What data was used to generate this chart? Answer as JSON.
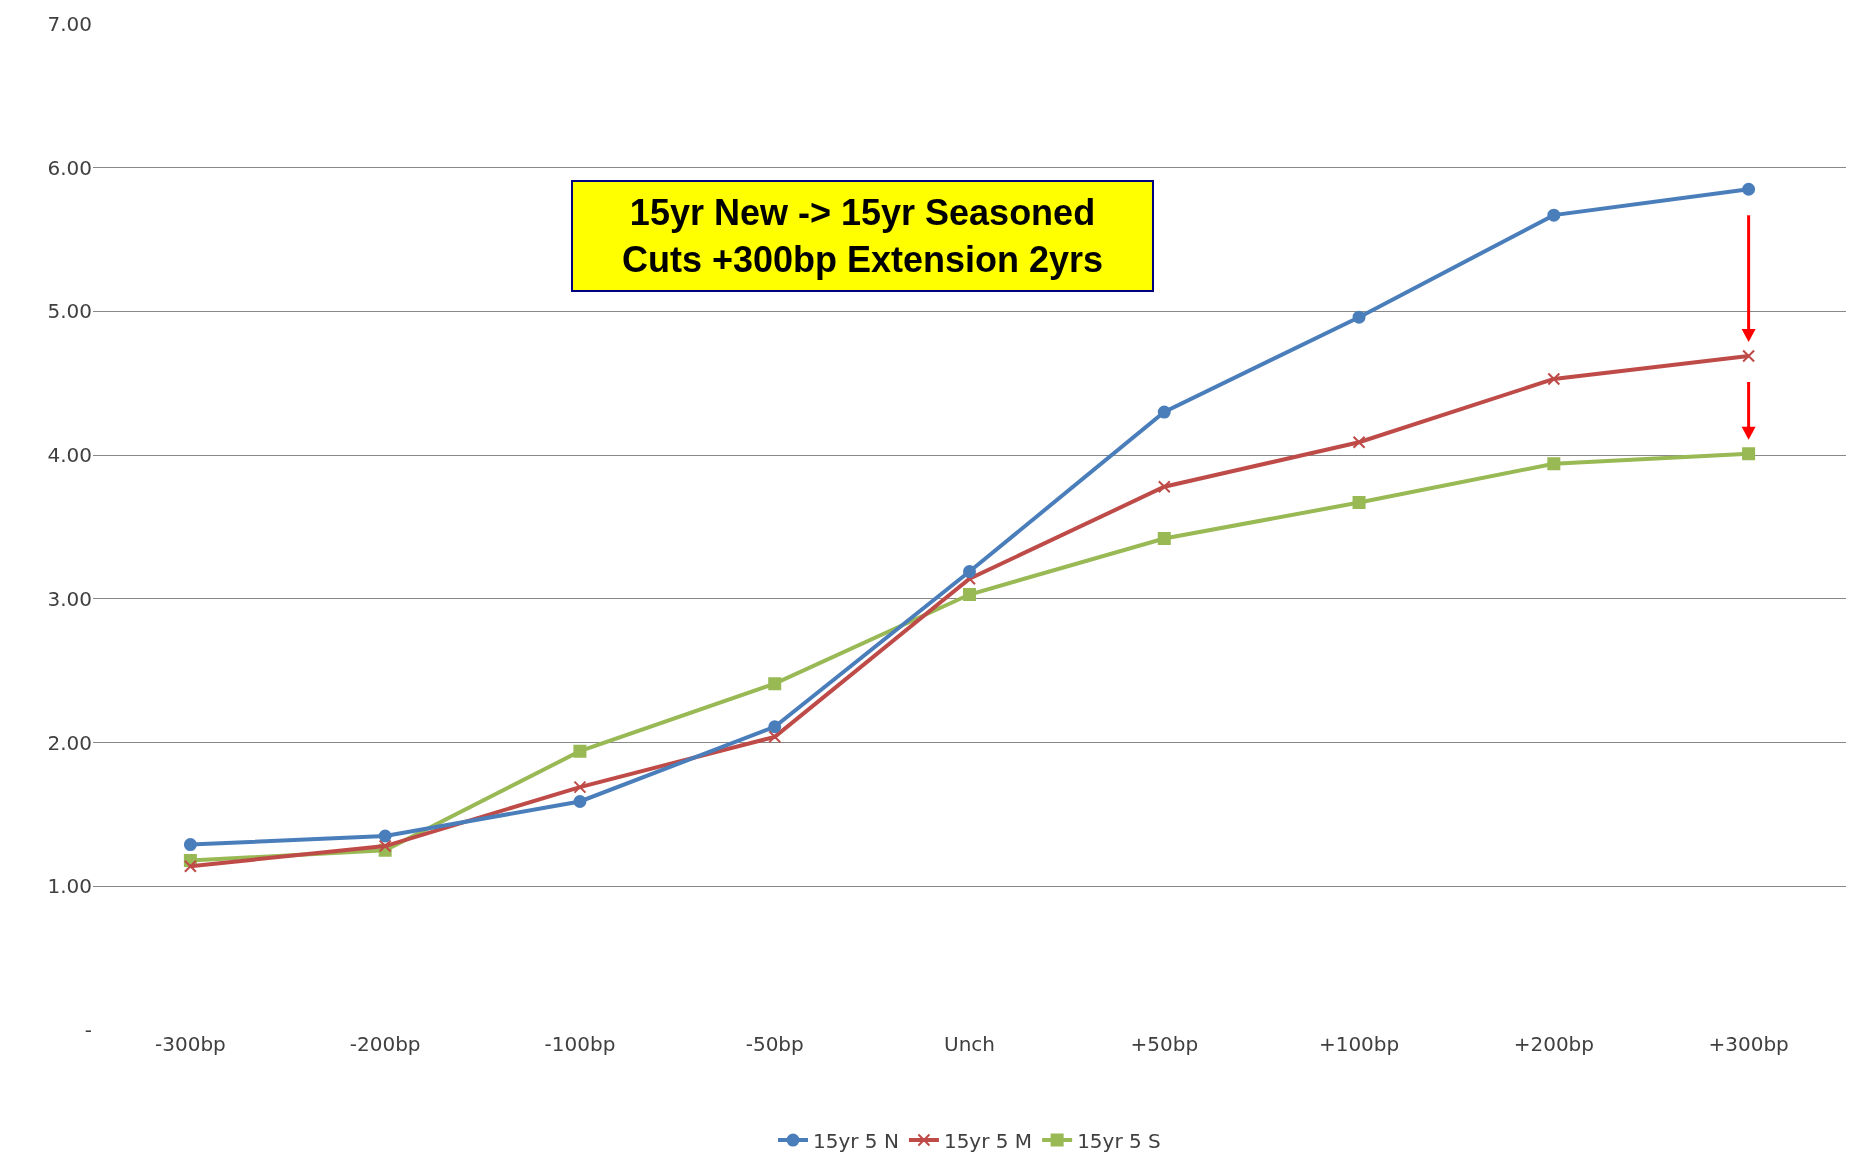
{
  "chart_data": {
    "type": "line",
    "categories": [
      "-300bp",
      "-200bp",
      "-100bp",
      "-50bp",
      "Unch",
      "+50bp",
      "+100bp",
      "+200bp",
      "+300bp"
    ],
    "series": [
      {
        "name": "15yr 5 N",
        "color": "#4a7ebb",
        "marker": "circle",
        "values": [
          1.29,
          1.35,
          1.59,
          2.11,
          3.19,
          4.3,
          4.96,
          5.67,
          5.85
        ]
      },
      {
        "name": "15yr 5 M",
        "color": "#be4b48",
        "marker": "cross",
        "values": [
          1.14,
          1.28,
          1.69,
          2.04,
          3.14,
          3.78,
          4.09,
          4.53,
          4.69
        ]
      },
      {
        "name": "15yr 5 S",
        "color": "#98b954",
        "marker": "square",
        "values": [
          1.18,
          1.25,
          1.94,
          2.41,
          3.03,
          3.42,
          3.67,
          3.94,
          4.01
        ]
      }
    ],
    "ylim": [
      0,
      7
    ],
    "yticks": [
      {
        "value": 0,
        "label": "-"
      },
      {
        "value": 1,
        "label": "1.00"
      },
      {
        "value": 2,
        "label": "2.00"
      },
      {
        "value": 3,
        "label": "3.00"
      },
      {
        "value": 4,
        "label": "4.00"
      },
      {
        "value": 5,
        "label": "5.00"
      },
      {
        "value": 6,
        "label": "6.00"
      },
      {
        "value": 7,
        "label": "7.00"
      }
    ],
    "grid": "y",
    "legend": "bottom",
    "line_style": "solid",
    "annotations": [
      "15yr New -> 15yr Seasoned\nCuts +300bp Extension 2yrs"
    ]
  }
}
